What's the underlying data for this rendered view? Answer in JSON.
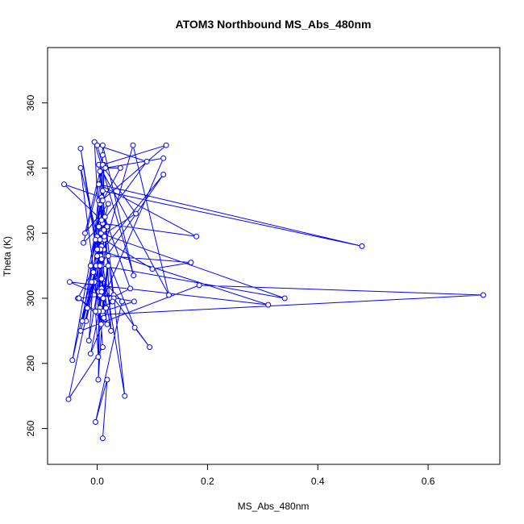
{
  "chart_data": {
    "type": "line",
    "title": "ATOM3 Northbound MS_Abs_480nm",
    "xlabel": "MS_Abs_480nm",
    "ylabel": "Theta (K)",
    "xlim": [
      -0.09,
      0.73
    ],
    "ylim": [
      249,
      377
    ],
    "xticks": [
      "0.0",
      "0.2",
      "0.4",
      "0.6"
    ],
    "xtick_values": [
      0,
      0.2,
      0.4,
      0.6
    ],
    "yticks": [
      "260",
      "280",
      "300",
      "320",
      "340",
      "360"
    ],
    "ytick_values": [
      260,
      280,
      300,
      320,
      340,
      360
    ],
    "grid": false,
    "color": "#0000ff",
    "marker": "open-circle",
    "series": [
      {
        "x": [
          0.01,
          0.018,
          -0.003,
          0.045,
          0.008,
          0.0,
          -0.012,
          0.025,
          0.06,
          0.005,
          -0.005,
          0.007,
          0.02,
          0.17,
          0.1,
          0.013,
          -0.02,
          -0.01,
          0.011,
          0.067,
          0.005,
          -0.05,
          0.31,
          0.0,
          0.005,
          0.018,
          -0.03,
          0.185,
          0.7,
          0.01,
          0.02,
          -0.012,
          0.03,
          -0.035,
          0.012,
          0.068,
          0.095,
          0.03,
          0.013,
          0.003,
          -0.015,
          0.008,
          0.34,
          0.005,
          -0.003,
          0.028,
          0.008,
          -0.007,
          0.006,
          0.012,
          -0.025,
          0.01,
          0.18,
          0.003,
          0.48,
          0.01,
          -0.045,
          0.007,
          0.02,
          -0.022,
          0.005,
          0.05,
          0.008,
          -0.003,
          0.07,
          0.012,
          0.01,
          0.002,
          0.008,
          -0.06,
          0.008,
          0.01,
          -0.018,
          0.065,
          0.13,
          0.003,
          0.012,
          0.014,
          0.025,
          -0.03,
          0.0,
          0.12,
          0.005,
          0.01,
          0.066,
          -0.005,
          0.012,
          0.003,
          0.09,
          0.0,
          0.01,
          0.125,
          0.008,
          -0.027,
          -0.002,
          0.008,
          0.003,
          -0.03,
          0.006,
          -0.052,
          0.01,
          0.003,
          0.016,
          0.005,
          0.0,
          0.01,
          0.042,
          0.015,
          0.12,
          0.011,
          0.005,
          0.002,
          -0.003,
          -0.033,
          0.018,
          0.008
        ],
        "y": [
          257,
          275,
          262,
          299,
          306,
          319,
          310,
          300,
          303,
          329,
          305,
          292,
          313,
          311,
          309,
          318,
          293,
          305,
          296,
          299,
          301,
          305,
          298,
          315,
          297,
          322,
          290,
          304,
          301,
          295,
          310,
          283,
          301,
          300,
          315,
          291,
          285,
          300,
          319,
          330,
          287,
          310,
          300,
          320,
          296,
          299,
          303,
          308,
          313,
          341,
          317,
          323,
          319,
          335,
          316,
          333,
          281,
          320,
          329,
          320,
          339,
          270,
          312,
          318,
          326,
          340,
          296,
          275,
          324,
          335,
          331,
          344,
          297,
          347,
          301,
          341,
          321,
          325,
          290,
          346,
          313,
          338,
          310,
          347,
          307,
          348,
          294,
          322,
          342,
          347,
          341,
          347,
          330,
          293,
          310,
          316,
          296,
          340,
          315,
          269,
          285,
          302,
          297,
          310,
          315,
          330,
          340,
          340,
          343,
          300,
          318,
          282,
          296,
          300,
          292,
          302
        ]
      }
    ]
  }
}
